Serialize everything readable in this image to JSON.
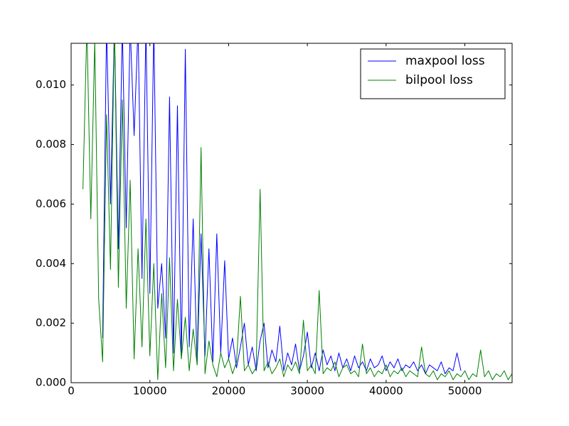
{
  "chart_data": {
    "type": "line",
    "x": [
      1500,
      2000,
      2500,
      3000,
      3500,
      4000,
      4500,
      5000,
      5500,
      6000,
      6500,
      7000,
      7500,
      8000,
      8500,
      9000,
      9500,
      10000,
      10500,
      11000,
      11500,
      12000,
      12500,
      13000,
      13500,
      14000,
      14500,
      15000,
      15500,
      16000,
      16500,
      17000,
      17500,
      18000,
      18500,
      19000,
      19500,
      20000,
      20500,
      21000,
      21500,
      22000,
      22500,
      23000,
      23500,
      24000,
      24500,
      25000,
      25500,
      26000,
      26500,
      27000,
      27500,
      28000,
      28500,
      29000,
      29500,
      30000,
      30500,
      31000,
      31500,
      32000,
      32500,
      33000,
      33500,
      34000,
      34500,
      35000,
      35500,
      36000,
      36500,
      37000,
      37500,
      38000,
      38500,
      39000,
      39500,
      40000,
      40500,
      41000,
      41500,
      42000,
      42500,
      43000,
      43500,
      44000,
      44500,
      45000,
      45500,
      46000,
      46500,
      47000,
      47500,
      48000,
      48500,
      49000,
      49500,
      50000,
      50500,
      51000,
      51500,
      52000,
      52500,
      53000,
      53500,
      54000,
      54500,
      55000,
      55500,
      56000
    ],
    "series": [
      {
        "name": "maxpool loss",
        "color": "#0000ff",
        "values": [
          null,
          null,
          null,
          null,
          null,
          0.0015,
          0.012,
          0.006,
          0.012,
          0.0045,
          0.012,
          0.0052,
          0.012,
          0.0083,
          0.012,
          0.0035,
          0.012,
          0.003,
          0.012,
          0.0025,
          0.004,
          0.0015,
          0.0096,
          0.001,
          0.0093,
          0.0008,
          0.0112,
          0.0012,
          0.0055,
          0.0006,
          0.005,
          0.0009,
          0.0045,
          0.0007,
          0.005,
          0.001,
          0.0041,
          0.0008,
          0.0015,
          0.0005,
          0.0012,
          0.002,
          0.0006,
          0.0012,
          0.0004,
          0.0014,
          0.002,
          0.0005,
          0.0011,
          0.0007,
          0.0019,
          0.0004,
          0.001,
          0.0006,
          0.0013,
          0.0004,
          0.0009,
          0.0017,
          0.0005,
          0.001,
          0.0004,
          0.0011,
          0.0006,
          0.0009,
          0.0004,
          0.001,
          0.0005,
          0.0008,
          0.0004,
          0.0009,
          0.0005,
          0.0007,
          0.0004,
          0.0008,
          0.0005,
          0.0006,
          0.0009,
          0.0004,
          0.0007,
          0.0005,
          0.0008,
          0.0004,
          0.0006,
          0.0005,
          0.0007,
          0.0004,
          0.0006,
          0.0003,
          0.0006,
          0.0005,
          0.0004,
          0.0007,
          0.0003,
          0.0005,
          0.0004,
          0.001,
          0.0004,
          null,
          null,
          null,
          null,
          null,
          null,
          null,
          null,
          null,
          null,
          null,
          null,
          null
        ]
      },
      {
        "name": "bilpool loss",
        "color": "#008000",
        "values": [
          0.0065,
          0.012,
          0.0055,
          0.0115,
          0.0028,
          0.0007,
          0.009,
          0.0038,
          0.012,
          0.0032,
          0.0095,
          0.0025,
          0.0068,
          0.0008,
          0.0045,
          0.0012,
          0.0055,
          0.0009,
          0.004,
          0.0001,
          0.003,
          0.0005,
          0.0042,
          0.0004,
          0.0028,
          0.0008,
          0.0022,
          0.0004,
          0.0018,
          0.0006,
          0.0079,
          0.0003,
          0.0014,
          0.0006,
          0.0002,
          0.001,
          0.0005,
          0.0008,
          0.0003,
          0.0007,
          0.0029,
          0.0004,
          0.0006,
          0.0003,
          0.0005,
          0.0065,
          0.0004,
          0.0007,
          0.0003,
          0.0005,
          0.0008,
          0.0002,
          0.0006,
          0.0004,
          0.0007,
          0.0003,
          0.0021,
          0.0004,
          0.0006,
          0.0003,
          0.0031,
          0.0003,
          0.0005,
          0.0004,
          0.0007,
          0.0002,
          0.0005,
          0.0006,
          0.0003,
          0.0004,
          0.0002,
          0.0013,
          0.0003,
          0.0005,
          0.0002,
          0.0004,
          0.0003,
          0.0006,
          0.0002,
          0.0004,
          0.0003,
          0.0005,
          0.0002,
          0.0004,
          0.0003,
          0.0002,
          0.0012,
          0.0003,
          0.0002,
          0.0004,
          0.0001,
          0.0003,
          0.0002,
          0.0004,
          0.0001,
          0.0003,
          0.0002,
          0.0004,
          0.0001,
          0.0003,
          0.0002,
          0.0011,
          0.0002,
          0.0004,
          0.0001,
          0.0003,
          0.0002,
          0.0004,
          0.0001,
          0.0003
        ]
      }
    ],
    "xlim": [
      0,
      56000
    ],
    "xticks": [
      0,
      10000,
      20000,
      30000,
      40000,
      50000
    ],
    "ylim": [
      0,
      0.0114
    ],
    "yticks": [
      {
        "value": 0,
        "label": "0.000"
      },
      {
        "value": 0.002,
        "label": "0.002"
      },
      {
        "value": 0.004,
        "label": "0.004"
      },
      {
        "value": 0.006,
        "label": "0.006"
      },
      {
        "value": 0.008,
        "label": "0.008"
      },
      {
        "value": 0.01,
        "label": "0.010"
      }
    ],
    "legend": "upper right",
    "grid": false
  }
}
